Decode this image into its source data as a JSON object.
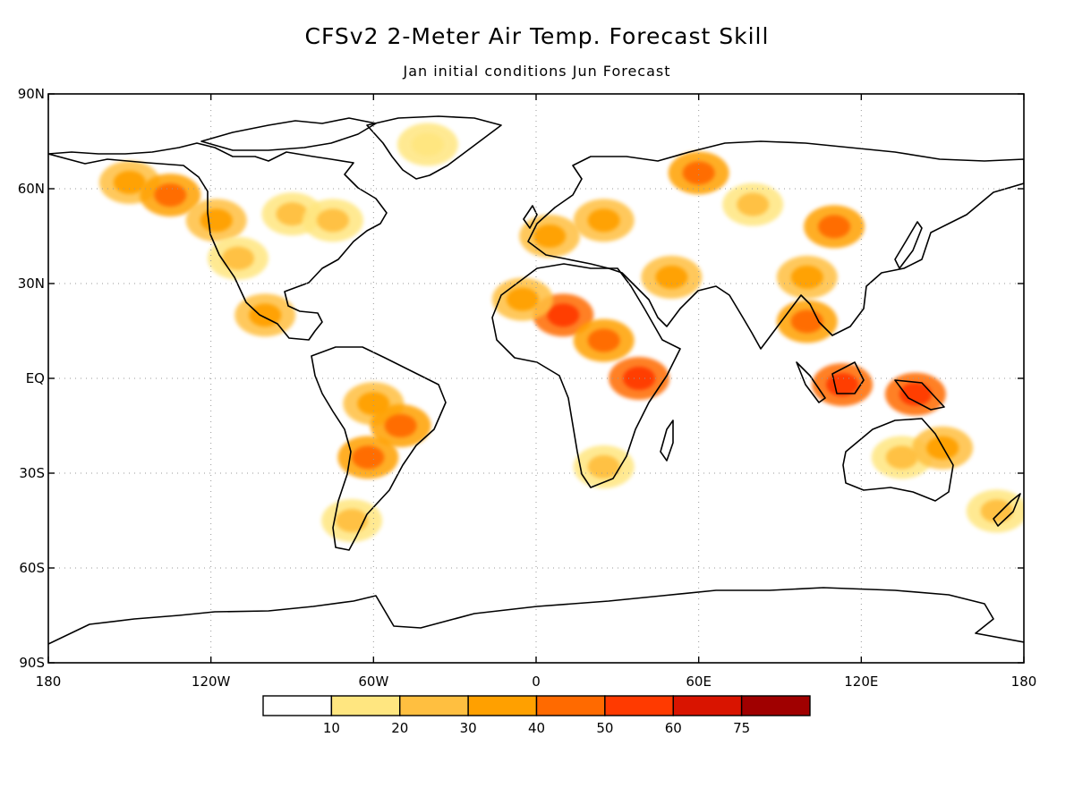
{
  "title": "CFSv2 2-Meter Air Temp. Forecast Skill",
  "subtitle": "Jan initial conditions   Jun Forecast",
  "map": {
    "projection": "equirectangular",
    "lon_range": [
      -180,
      180
    ],
    "lat_range": [
      -90,
      90
    ],
    "x_ticks": [
      {
        "lon": -180,
        "label": "180"
      },
      {
        "lon": -120,
        "label": "120W"
      },
      {
        "lon": -60,
        "label": "60W"
      },
      {
        "lon": 0,
        "label": "0"
      },
      {
        "lon": 60,
        "label": "60E"
      },
      {
        "lon": 120,
        "label": "120E"
      },
      {
        "lon": 180,
        "label": "180"
      }
    ],
    "y_ticks": [
      {
        "lat": 90,
        "label": "90N"
      },
      {
        "lat": 60,
        "label": "60N"
      },
      {
        "lat": 30,
        "label": "30N"
      },
      {
        "lat": 0,
        "label": "EQ"
      },
      {
        "lat": -30,
        "label": "30S"
      },
      {
        "lat": -60,
        "label": "60S"
      },
      {
        "lat": -90,
        "label": "90S"
      }
    ],
    "grid": true
  },
  "legend": {
    "bins": [
      {
        "color": "#ffffff"
      },
      {
        "color": "#ffe680"
      },
      {
        "color": "#ffbf40"
      },
      {
        "color": "#ffa000"
      },
      {
        "color": "#ff6a00"
      },
      {
        "color": "#ff3a00"
      },
      {
        "color": "#d91400"
      },
      {
        "color": "#a00000"
      }
    ],
    "boundaries": [
      "10",
      "20",
      "30",
      "40",
      "50",
      "60",
      "75"
    ]
  },
  "skill_regions": [
    {
      "lon": -150,
      "lat": 62,
      "level": 3
    },
    {
      "lon": -135,
      "lat": 58,
      "level": 4
    },
    {
      "lon": -118,
      "lat": 50,
      "level": 3
    },
    {
      "lon": -110,
      "lat": 38,
      "level": 2
    },
    {
      "lon": -90,
      "lat": 52,
      "level": 2
    },
    {
      "lon": -75,
      "lat": 50,
      "level": 2
    },
    {
      "lon": -100,
      "lat": 20,
      "level": 3
    },
    {
      "lon": -40,
      "lat": 74,
      "level": 1
    },
    {
      "lon": -60,
      "lat": -8,
      "level": 3
    },
    {
      "lon": -50,
      "lat": -15,
      "level": 4
    },
    {
      "lon": -62,
      "lat": -25,
      "level": 4
    },
    {
      "lon": -68,
      "lat": -45,
      "level": 2
    },
    {
      "lon": 5,
      "lat": 45,
      "level": 3
    },
    {
      "lon": 25,
      "lat": 50,
      "level": 3
    },
    {
      "lon": 10,
      "lat": 20,
      "level": 5
    },
    {
      "lon": -5,
      "lat": 25,
      "level": 3
    },
    {
      "lon": 25,
      "lat": 12,
      "level": 4
    },
    {
      "lon": 38,
      "lat": 0,
      "level": 5
    },
    {
      "lon": 25,
      "lat": -28,
      "level": 2
    },
    {
      "lon": 50,
      "lat": 32,
      "level": 3
    },
    {
      "lon": 60,
      "lat": 65,
      "level": 4
    },
    {
      "lon": 80,
      "lat": 55,
      "level": 2
    },
    {
      "lon": 110,
      "lat": 48,
      "level": 4
    },
    {
      "lon": 100,
      "lat": 32,
      "level": 3
    },
    {
      "lon": 100,
      "lat": 18,
      "level": 4
    },
    {
      "lon": 113,
      "lat": -2,
      "level": 5
    },
    {
      "lon": 140,
      "lat": -5,
      "level": 5
    },
    {
      "lon": 135,
      "lat": -25,
      "level": 2
    },
    {
      "lon": 150,
      "lat": -22,
      "level": 3
    },
    {
      "lon": 170,
      "lat": -42,
      "level": 2
    }
  ]
}
